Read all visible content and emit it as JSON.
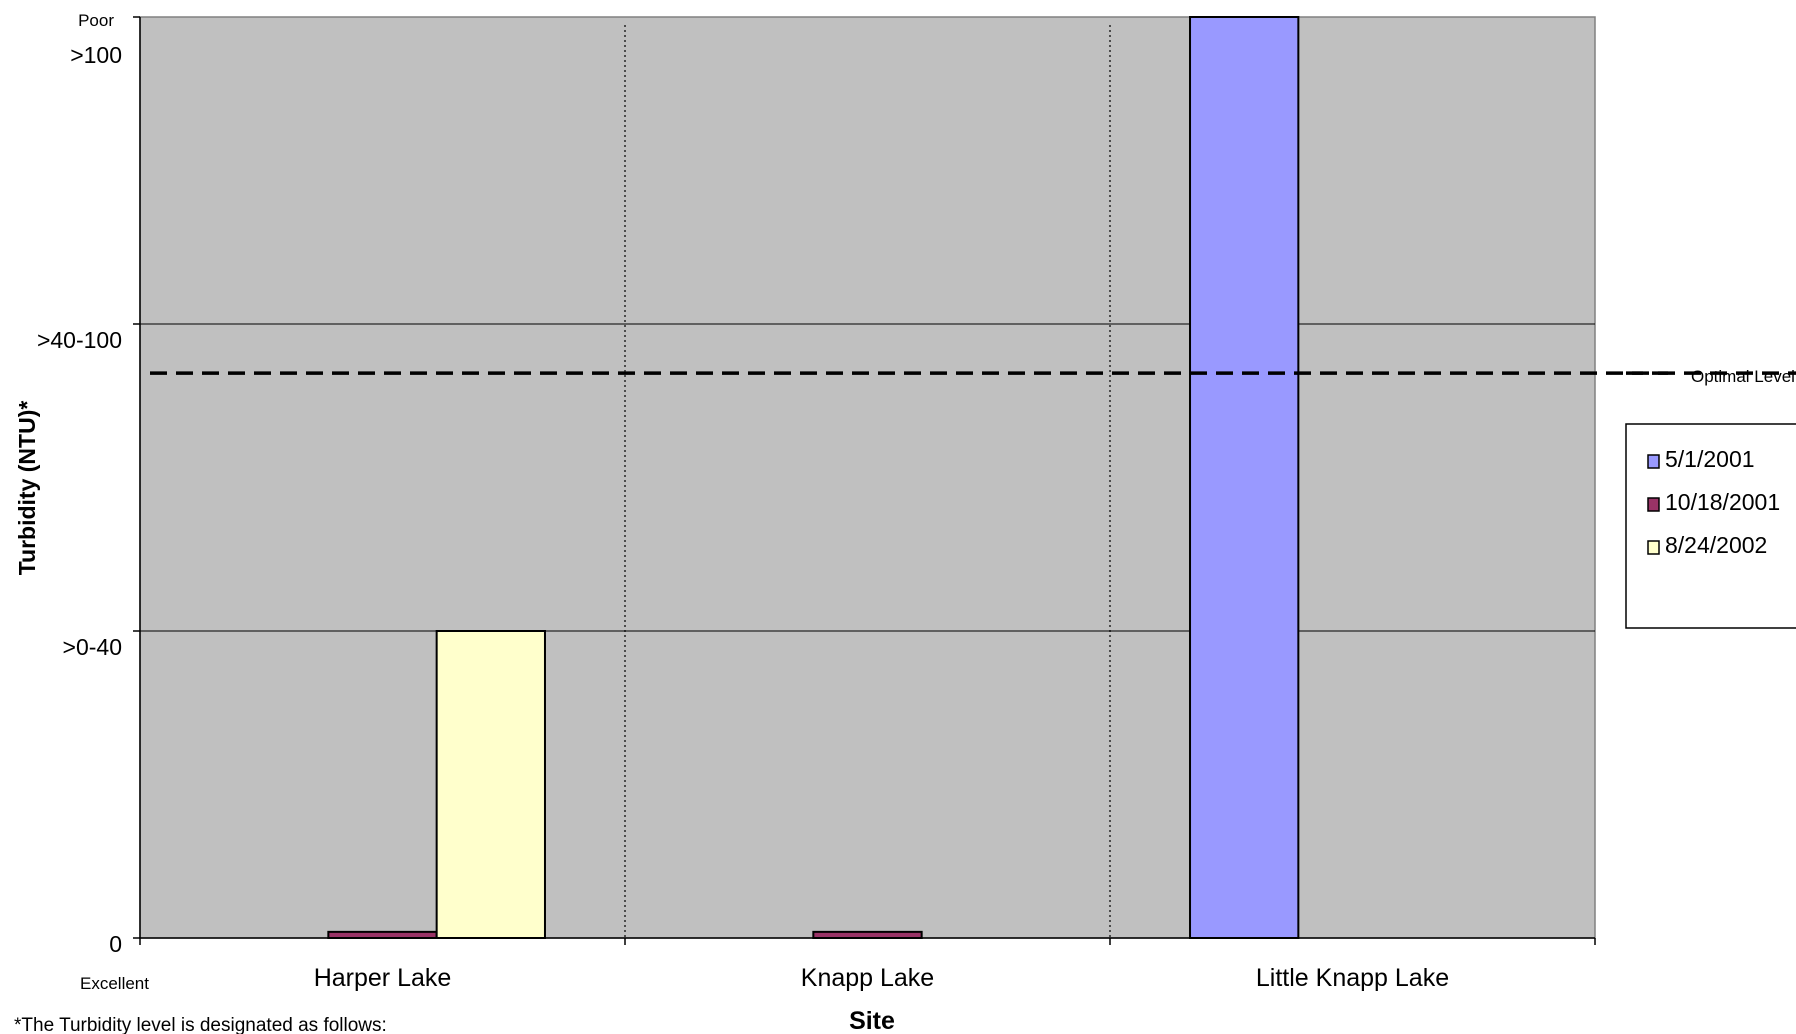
{
  "chart_data": {
    "type": "bar",
    "xlabel": "Site",
    "ylabel": "Turbidity (NTU)*",
    "categories": [
      "Harper Lake",
      "Knapp Lake",
      "Little Knapp Lake"
    ],
    "ylim": [
      0,
      3
    ],
    "y_ticks": [
      {
        "value": 0,
        "label": "0"
      },
      {
        "value": 1,
        "label": ">0-40"
      },
      {
        "value": 2,
        "label": ">40-100"
      },
      {
        "value": 3,
        "label": ">100"
      }
    ],
    "y_top_label": "Poor",
    "y_bottom_label": "Excellent",
    "series": [
      {
        "name": "5/1/2001",
        "color": "#9999ff",
        "values": [
          null,
          null,
          3
        ]
      },
      {
        "name": "10/18/2001",
        "color": "#993366",
        "values": [
          0.02,
          0.02,
          null
        ]
      },
      {
        "name": "8/24/2002",
        "color": "#ffffcc",
        "values": [
          1,
          null,
          null
        ]
      }
    ],
    "reference_line": {
      "name": "Optimal Level",
      "value": 1.84,
      "style": "dashed"
    },
    "grid": true,
    "plot_background": "#c0c0c0",
    "legend_position": "right",
    "footnote": "*The Turbidity level is designated as follows:"
  }
}
